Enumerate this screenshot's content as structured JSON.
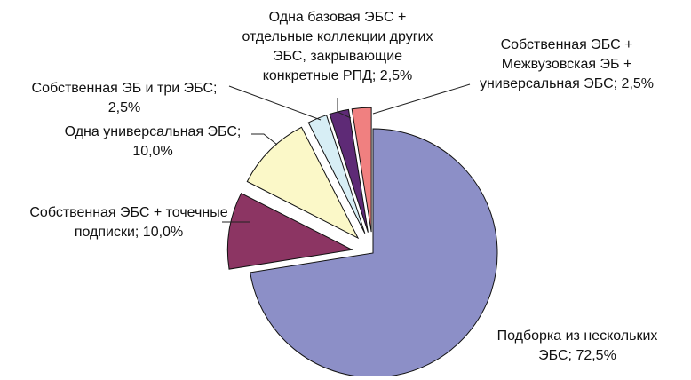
{
  "chart_data": {
    "type": "pie",
    "title": "",
    "slices": [
      {
        "label": "Подборка из нескольких ЭБС",
        "value": 72.5,
        "value_text": "72,5%",
        "color": "#8c8fc7",
        "label_lines": [
          "Подборка из нескольких",
          "ЭБС; 72,5%"
        ]
      },
      {
        "label": "Собственная ЭБС + точечные подписки",
        "value": 10.0,
        "value_text": "10,0%",
        "color": "#8c3563",
        "label_lines": [
          "Собственная ЭБС + точечные",
          "подписки; 10,0%"
        ]
      },
      {
        "label": "Одна универсальная ЭБС",
        "value": 10.0,
        "value_text": "10,0%",
        "color": "#fbf8c8",
        "label_lines": [
          "Одна универсальная ЭБС;",
          "10,0%"
        ]
      },
      {
        "label": "Собственная ЭБ и три ЭБС",
        "value": 2.5,
        "value_text": "2,5%",
        "color": "#d7eef5",
        "label_lines": [
          "Собственная ЭБ и три ЭБС;",
          "2,5%"
        ]
      },
      {
        "label": "Одна базовая ЭБС + отдельные коллекции других ЭБС, закрывающие конкретные РПД",
        "value": 2.5,
        "value_text": "2,5%",
        "color": "#5e2a76",
        "label_lines": [
          "Одна базовая ЭБС +",
          "отдельные коллекции других",
          "ЭБС, закрывающие",
          "конкретные РПД; 2,5%"
        ]
      },
      {
        "label": "Собственная ЭБС + Межвузовская ЭБ + универсальная ЭБС",
        "value": 2.5,
        "value_text": "2,5%",
        "color": "#f08080",
        "label_lines": [
          "Собственная ЭБС +",
          "Межвузовская ЭБ +",
          "универсальная ЭБС; 2,5%"
        ]
      }
    ]
  }
}
